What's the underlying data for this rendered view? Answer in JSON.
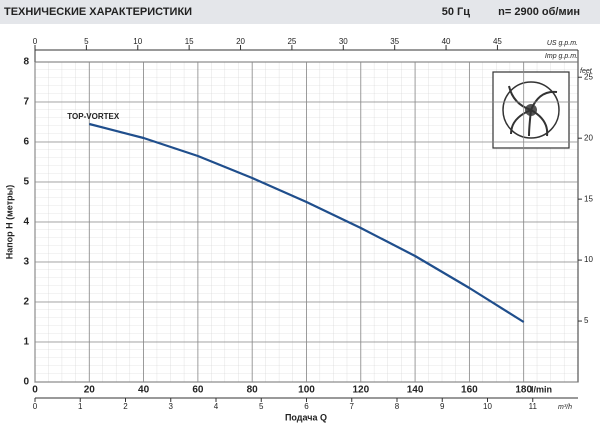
{
  "header": {
    "title": "ТЕХНИЧЕСКИЕ ХАРАКТЕРИСТИКИ",
    "frequency": "50 Гц",
    "speed": "n= 2900 об/мин"
  },
  "chart_data": {
    "type": "line",
    "x_label": "Подача Q",
    "x_unit": "l/min",
    "y_label": "Напор H (метры)",
    "x2_unit": "US g.p.m.",
    "x2b_unit": "Imp g.p.m.",
    "x3_unit": "m³/h",
    "y2_unit": "feet",
    "x": [
      20,
      40,
      60,
      80,
      100,
      120,
      140,
      160,
      180
    ],
    "series": [
      {
        "name": "TOP-VORTEX",
        "color": "#1f4e8c",
        "values": [
          6.45,
          6.1,
          5.65,
          5.1,
          4.5,
          3.85,
          3.15,
          2.35,
          1.5
        ]
      }
    ],
    "xlim": [
      0,
      200
    ],
    "xticks": [
      0,
      20,
      40,
      60,
      80,
      100,
      120,
      140,
      160,
      180
    ],
    "ylim": [
      0,
      8
    ],
    "yticks": [
      0,
      1,
      2,
      3,
      4,
      5,
      6,
      7,
      8
    ],
    "x2lim": [
      0,
      52.84
    ],
    "x2ticks": [
      0,
      5,
      10,
      15,
      20,
      25,
      30,
      35,
      40,
      45
    ],
    "x3lim": [
      0,
      12
    ],
    "x3ticks": [
      0,
      1,
      2,
      3,
      4,
      5,
      6,
      7,
      8,
      9,
      10,
      11
    ],
    "y2lim": [
      0,
      26.25
    ],
    "y2ticks": [
      5,
      10,
      15,
      20,
      25
    ],
    "grid": true
  }
}
